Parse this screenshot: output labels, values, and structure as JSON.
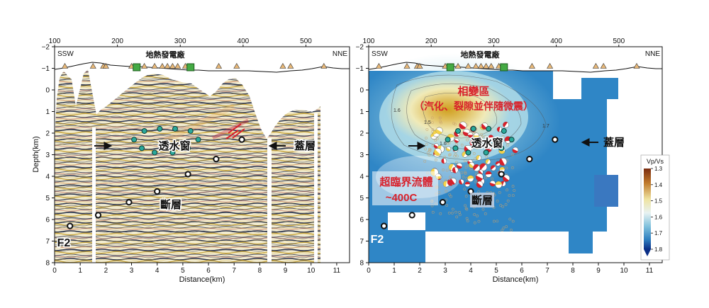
{
  "chart_data": [
    {
      "type": "seismic-section",
      "top_axis_ticks": [
        "100",
        "200",
        "300",
        "400",
        "500"
      ],
      "elev_ticks": [
        "−2",
        "−1"
      ],
      "ylabel": "Depth(km)",
      "y_ticks": [
        "0",
        "1",
        "2",
        "3",
        "4",
        "5",
        "6",
        "7",
        "8"
      ],
      "xlabel": "Distance(km)",
      "x_ticks": [
        "0",
        "1",
        "2",
        "3",
        "4",
        "5",
        "6",
        "7",
        "8",
        "9",
        "10",
        "11"
      ],
      "xlim": [
        0,
        11.5
      ],
      "ylim": [
        8,
        -2
      ],
      "left_label": "SSW",
      "right_label": "NNE",
      "plant_label": "地熱發電廠",
      "labels": {
        "window": "透水窗",
        "fault": "斷層",
        "caprock": "蓋層",
        "f2": "F2"
      },
      "surface_stations_km": [
        0.4,
        1.5,
        1.9,
        2.0,
        3.0,
        3.5,
        3.9,
        4.2,
        4.4,
        4.6,
        4.8,
        5.1,
        6.4,
        7.1,
        8.9,
        9.2,
        10.5
      ],
      "power_plants_km": [
        3.2,
        5.3
      ],
      "events": [
        {
          "x": 0.6,
          "y": 6.3
        },
        {
          "x": 1.7,
          "y": 5.8
        },
        {
          "x": 2.9,
          "y": 5.2
        },
        {
          "x": 4.0,
          "y": 4.7
        },
        {
          "x": 5.2,
          "y": 3.9
        },
        {
          "x": 6.3,
          "y": 3.2
        },
        {
          "x": 7.3,
          "y": 2.3
        }
      ],
      "window_ring": [
        {
          "x": 3.5,
          "y": 1.9
        },
        {
          "x": 4.1,
          "y": 1.8
        },
        {
          "x": 4.7,
          "y": 1.8
        },
        {
          "x": 5.3,
          "y": 1.9
        },
        {
          "x": 3.1,
          "y": 2.3
        },
        {
          "x": 5.6,
          "y": 2.3
        },
        {
          "x": 3.4,
          "y": 2.7
        },
        {
          "x": 3.9,
          "y": 2.9
        },
        {
          "x": 4.6,
          "y": 2.9
        },
        {
          "x": 5.2,
          "y": 2.7
        }
      ]
    },
    {
      "type": "heatmap",
      "top_axis_ticks": [
        "100",
        "200",
        "300",
        "400",
        "500"
      ],
      "elev_ticks": [
        "−2",
        "−1"
      ],
      "y_ticks": [
        "0",
        "1",
        "2",
        "3",
        "4",
        "5",
        "6",
        "7",
        "8"
      ],
      "xlabel": "Distance(km)",
      "x_ticks": [
        "0",
        "1",
        "2",
        "3",
        "4",
        "5",
        "6",
        "7",
        "8",
        "9",
        "10",
        "11"
      ],
      "xlim": [
        0,
        11.5
      ],
      "ylim": [
        8,
        -2
      ],
      "left_label": "SSW",
      "right_label": "NNE",
      "plant_label": "地熱發電廠",
      "labels": {
        "alteration_title": "相變區",
        "alteration_sub": "（汽化、裂隙並伴隨微震）",
        "window": "透水窗",
        "caprock": "蓋層",
        "supercritical_1": "超臨界流體",
        "supercritical_2": "~400C",
        "fault": "斷層",
        "f2": "F2"
      },
      "contour_labels": [
        "1.5",
        "1.6",
        "1.6",
        "1.7"
      ],
      "colorbar": {
        "title": "Vp/Vs",
        "ticks": [
          "1.3",
          "1.4",
          "1.5",
          "1.6",
          "1.7",
          "1.8"
        ],
        "min": 1.3,
        "max": 1.8
      },
      "events": [
        {
          "x": 0.6,
          "y": 6.3
        },
        {
          "x": 1.7,
          "y": 5.8
        },
        {
          "x": 2.9,
          "y": 5.2
        },
        {
          "x": 4.0,
          "y": 4.7
        },
        {
          "x": 5.2,
          "y": 3.9
        },
        {
          "x": 6.3,
          "y": 3.2
        },
        {
          "x": 7.3,
          "y": 2.3
        }
      ],
      "window_ring": [
        {
          "x": 3.5,
          "y": 1.9
        },
        {
          "x": 4.1,
          "y": 1.8
        },
        {
          "x": 4.7,
          "y": 1.8
        },
        {
          "x": 5.3,
          "y": 1.9
        },
        {
          "x": 3.1,
          "y": 2.3
        },
        {
          "x": 5.6,
          "y": 2.3
        },
        {
          "x": 3.4,
          "y": 2.7
        },
        {
          "x": 3.9,
          "y": 2.9
        },
        {
          "x": 4.6,
          "y": 2.9
        },
        {
          "x": 5.2,
          "y": 2.7
        }
      ]
    }
  ]
}
